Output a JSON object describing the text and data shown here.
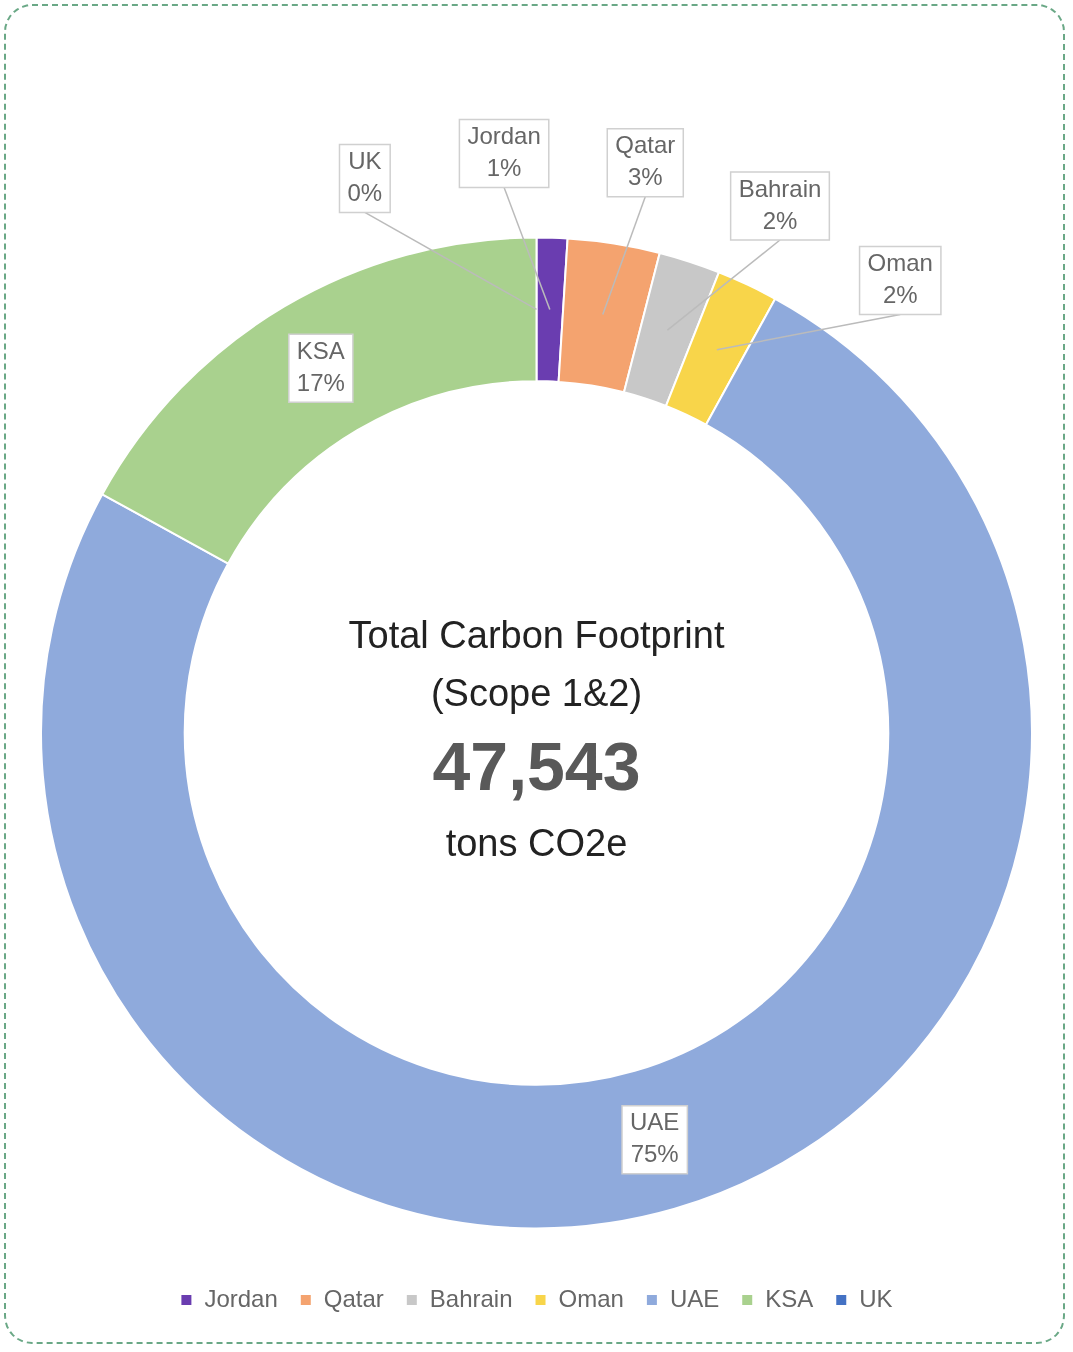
{
  "chart_data": {
    "type": "donut",
    "title": "Total Carbon Footprint",
    "subtitle": "(Scope 1&2)",
    "annotations": [
      "47,543",
      "tons CO2e"
    ],
    "categories": [
      "Jordan",
      "Qatar",
      "Bahrain",
      "Oman",
      "UAE",
      "KSA",
      "UK"
    ],
    "values": [
      1,
      3,
      2,
      2,
      75,
      17,
      0
    ],
    "value_labels": [
      "1%",
      "3%",
      "2%",
      "2%",
      "75%",
      "17%",
      "0%"
    ],
    "colors": [
      "#6a3db0",
      "#f4a36f",
      "#c8c8c8",
      "#f8d54a",
      "#8faadc",
      "#a9d18e",
      "#4472c4"
    ],
    "legend": "bottom"
  }
}
